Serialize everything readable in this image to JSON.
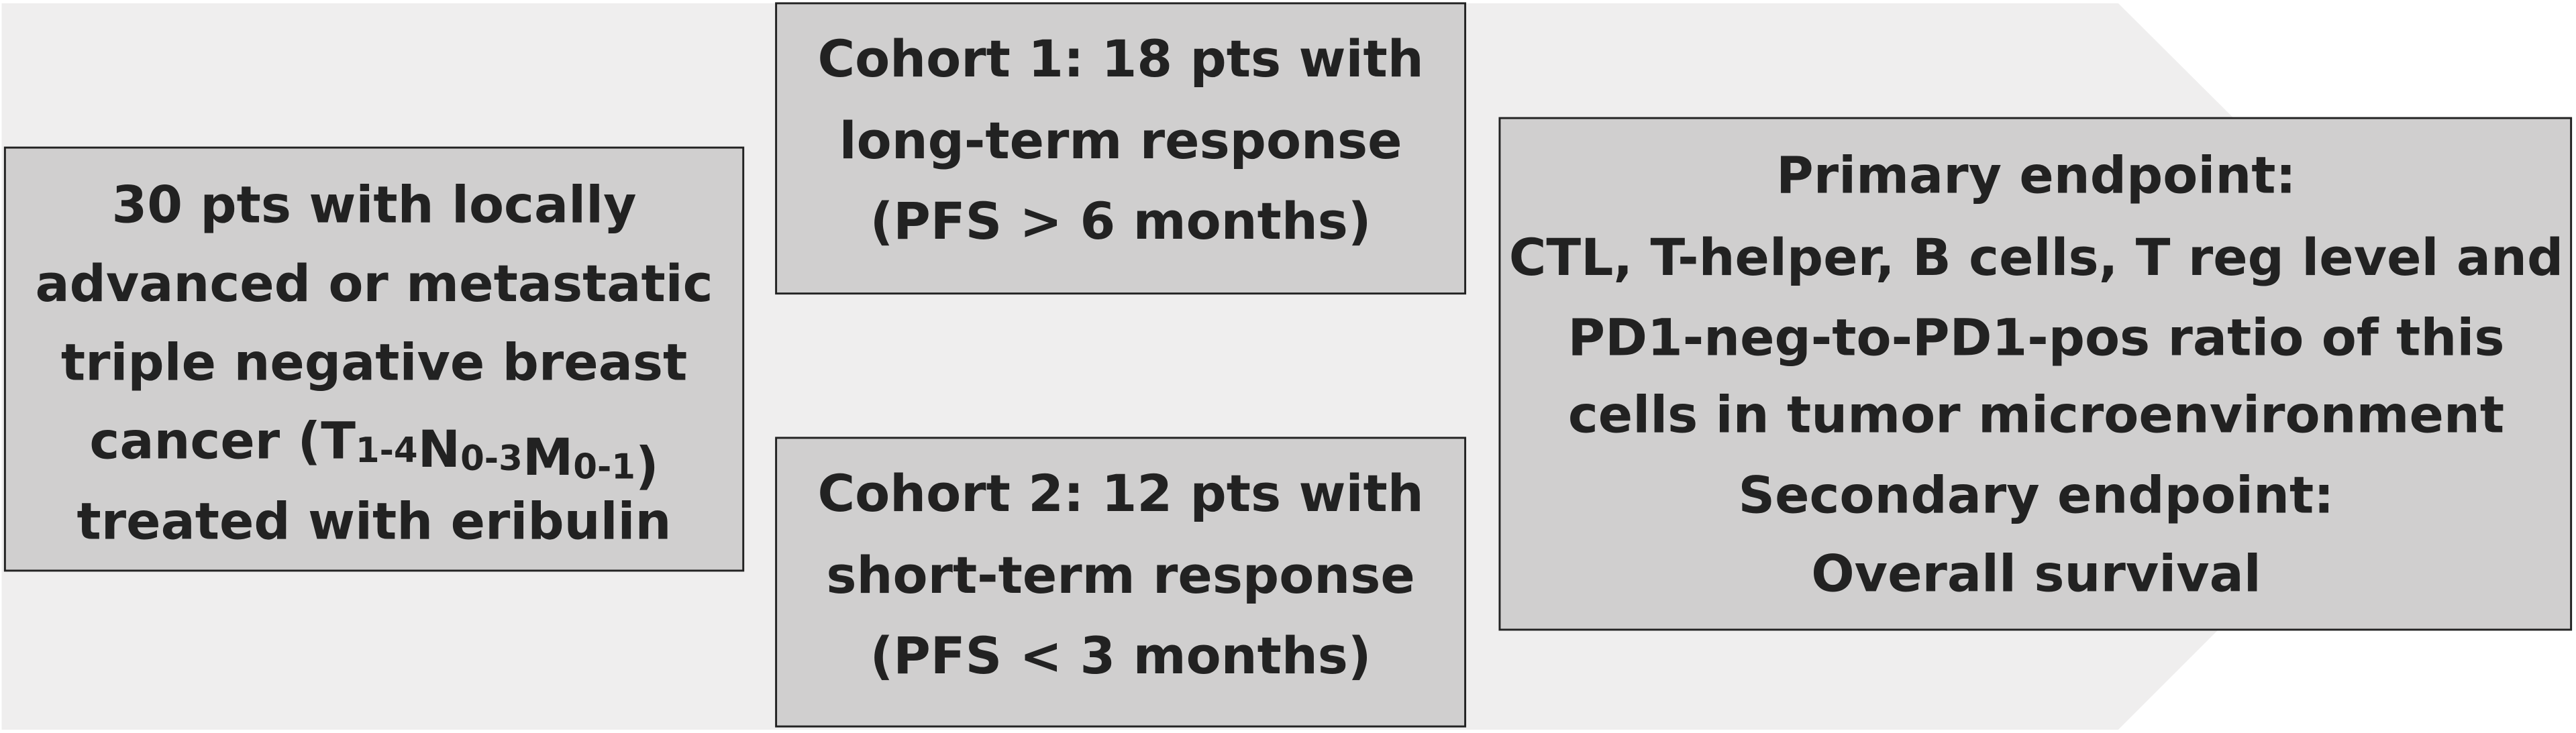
{
  "patients": {
    "lines": [
      "30 pts with locally",
      "advanced or metastatic",
      "triple negative breast"
    ],
    "staging": {
      "prefix": "cancer (",
      "parts": [
        {
          "letter": "T",
          "sub": "1-4"
        },
        {
          "letter": "N",
          "sub": "0-3"
        },
        {
          "letter": "M",
          "sub": "0-1"
        }
      ],
      "suffix": ")"
    },
    "last_line": "treated with eribulin"
  },
  "cohort_1": {
    "lines": [
      "Cohort 1: 18 pts with",
      "long-term response",
      "(PFS > 6 months)"
    ]
  },
  "cohort_2": {
    "lines": [
      "Cohort 2: 12 pts with",
      "short-term response",
      "(PFS < 3 months)"
    ]
  },
  "endpoints": {
    "lines": [
      "Primary endpoint:",
      "CTL, T-helper, B cells, T reg level and",
      "PD1-neg-to-PD1-pos ratio of this",
      "cells in tumor microenvironment",
      "Secondary endpoint:",
      "Overall survival"
    ]
  }
}
